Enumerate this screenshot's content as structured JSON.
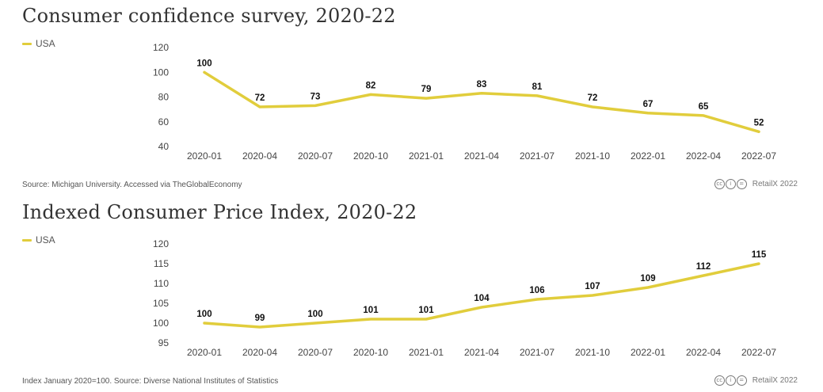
{
  "charts": [
    {
      "title": "Consumer confidence survey, 2020-22",
      "source": "Source: Michigan University. Accessed via TheGlobalEconomy",
      "credit": "RetailX 2022"
    },
    {
      "title": "Indexed Consumer Price Index, 2020-22",
      "source": "Index January 2020=100. Source: Diverse National Institutes of Statistics",
      "credit": "RetailX 2022"
    }
  ],
  "icons": [
    "cc-icon",
    "by-icon",
    "nd-icon"
  ],
  "colors": {
    "series": "#e1cd3c",
    "text": "#333333",
    "tick": "#444444"
  },
  "chart_data": [
    {
      "type": "line",
      "title": "Consumer confidence survey, 2020-22",
      "categories": [
        "2020-01",
        "2020-04",
        "2020-07",
        "2020-10",
        "2021-01",
        "2021-04",
        "2021-07",
        "2021-10",
        "2022-01",
        "2022-04",
        "2022-07"
      ],
      "series": [
        {
          "name": "USA",
          "values": [
            100,
            72,
            73,
            82,
            79,
            83,
            81,
            72,
            67,
            65,
            52
          ]
        }
      ],
      "yticks": [
        40,
        60,
        80,
        100,
        120
      ],
      "ylim": [
        40,
        120
      ],
      "xlabel": "",
      "ylabel": "",
      "grid": false,
      "legend": "top-left"
    },
    {
      "type": "line",
      "title": "Indexed Consumer Price Index, 2020-22",
      "categories": [
        "2020-01",
        "2020-04",
        "2020-07",
        "2020-10",
        "2021-01",
        "2021-04",
        "2021-07",
        "2021-10",
        "2022-01",
        "2022-04",
        "2022-07"
      ],
      "series": [
        {
          "name": "USA",
          "values": [
            100,
            99,
            100,
            101,
            101,
            104,
            106,
            107,
            109,
            112,
            115
          ]
        }
      ],
      "yticks": [
        95,
        100,
        105,
        110,
        115,
        120
      ],
      "ylim": [
        95,
        120
      ],
      "xlabel": "",
      "ylabel": "",
      "grid": false,
      "legend": "top-left"
    }
  ]
}
